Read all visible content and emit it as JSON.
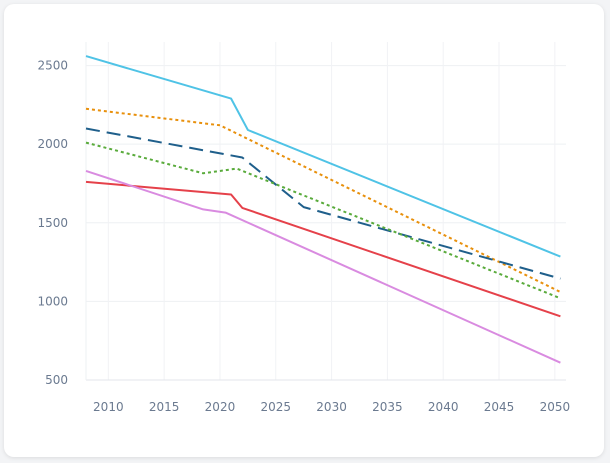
{
  "chart_data": {
    "type": "line",
    "title": "",
    "xlabel": "",
    "ylabel": "",
    "xlim": [
      2008,
      2051
    ],
    "ylim": [
      500,
      2650
    ],
    "x_ticks": [
      "2010",
      "2015",
      "2020",
      "2025",
      "2030",
      "2035",
      "2040",
      "2045",
      "2050"
    ],
    "y_ticks": [
      "500",
      "1000",
      "1500",
      "2000",
      "2500"
    ],
    "grid": true,
    "legend": "none",
    "series": [
      {
        "color": "#4fc3e6",
        "dash": "solid",
        "points": [
          [
            2008,
            2560
          ],
          [
            2021,
            2290
          ],
          [
            2022.5,
            2090
          ],
          [
            2050.5,
            1285
          ]
        ]
      },
      {
        "color": "#e8900c",
        "dash": "dotted",
        "points": [
          [
            2008,
            2225
          ],
          [
            2020,
            2120
          ],
          [
            2050.5,
            1060
          ]
        ]
      },
      {
        "color": "#1f5f8b",
        "dash": "longdash",
        "points": [
          [
            2008,
            2100
          ],
          [
            2022,
            1915
          ],
          [
            2027.5,
            1600
          ],
          [
            2050.5,
            1145
          ]
        ]
      },
      {
        "color": "#5aab3c",
        "dash": "dotted",
        "points": [
          [
            2008,
            2010
          ],
          [
            2018.5,
            1815
          ],
          [
            2021.5,
            1845
          ],
          [
            2050.5,
            1020
          ]
        ]
      },
      {
        "color": "#e5414a",
        "dash": "solid",
        "points": [
          [
            2008,
            1760
          ],
          [
            2021,
            1680
          ],
          [
            2022,
            1595
          ],
          [
            2050.5,
            905
          ]
        ]
      },
      {
        "color": "#d98be0",
        "dash": "solid",
        "points": [
          [
            2008,
            1830
          ],
          [
            2018.5,
            1585
          ],
          [
            2020.5,
            1565
          ],
          [
            2050.5,
            610
          ]
        ]
      }
    ]
  }
}
